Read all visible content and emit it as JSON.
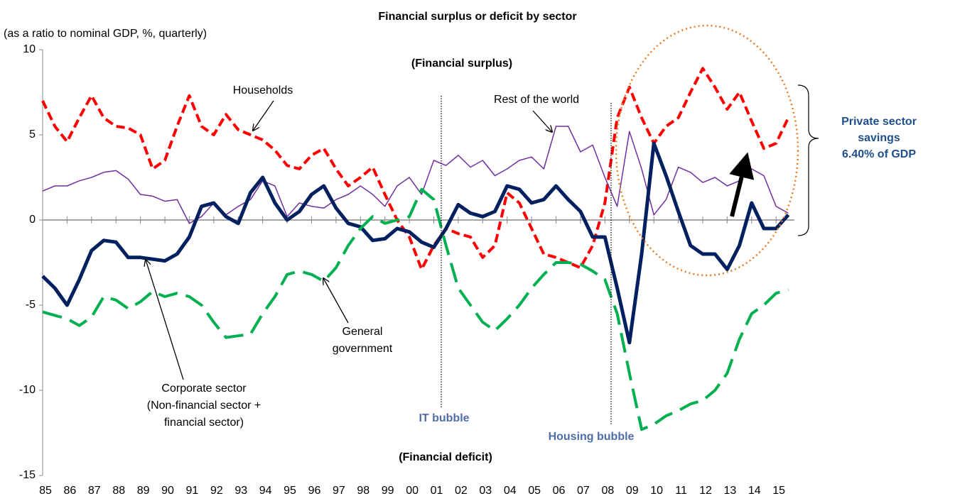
{
  "chart_data": {
    "type": "line",
    "title": "Financial surplus or deficit by sector",
    "subtitle": "(as a ratio to nominal GDP, %, quarterly)",
    "x": [
      1985,
      1985.5,
      1986,
      1986.5,
      1987,
      1987.5,
      1988,
      1988.5,
      1989,
      1989.5,
      1990,
      1990.5,
      1991,
      1991.5,
      1992,
      1992.5,
      1993,
      1993.5,
      1994,
      1994.5,
      1995,
      1995.5,
      1996,
      1996.5,
      1997,
      1997.5,
      1998,
      1998.5,
      1999,
      1999.5,
      2000,
      2000.5,
      2001,
      2001.5,
      2002,
      2002.5,
      2003,
      2003.5,
      2004,
      2004.5,
      2005,
      2005.5,
      2006,
      2006.5,
      2007,
      2007.5,
      2008,
      2008.5,
      2009,
      2009.5,
      2010,
      2010.5,
      2011,
      2011.5,
      2012,
      2012.5,
      2013,
      2013.5,
      2014,
      2014.5,
      2015,
      2015.5
    ],
    "series": [
      {
        "name": "Households",
        "color": "#ff0000",
        "dash": "dashed",
        "width": 4,
        "values": [
          7,
          5.5,
          4.6,
          6,
          7.3,
          6,
          5.5,
          5.4,
          5,
          3,
          3.5,
          5.5,
          7.3,
          5.5,
          5,
          6.2,
          5.3,
          5,
          4.7,
          4.1,
          3.2,
          3,
          3.8,
          4.2,
          3,
          2,
          2.5,
          3.1,
          1.5,
          0,
          -1,
          -2.9,
          -1.5,
          -0.5,
          -0.8,
          -1,
          -2.2,
          -1.5,
          1.6,
          1,
          -0.5,
          -2,
          -2.2,
          -2.5,
          -2.8,
          -1.5,
          1,
          6,
          7.8,
          6,
          4.5,
          5.5,
          6,
          7.5,
          8.9,
          7.8,
          6.5,
          7.5,
          5.8,
          4.2,
          4.5,
          6
        ]
      },
      {
        "name": "Rest of the world",
        "color": "#7030a0",
        "dash": "solid",
        "width": 1.5,
        "values": [
          1.7,
          2,
          2,
          2.3,
          2.5,
          2.8,
          2.9,
          2.4,
          1.5,
          1.4,
          1.1,
          1.2,
          -0.2,
          0.2,
          1,
          0.3,
          0.8,
          1.2,
          2.3,
          2,
          0.2,
          1,
          0.8,
          0.7,
          1.2,
          1.5,
          2,
          1.5,
          0.8,
          2,
          2.5,
          1.5,
          3.5,
          3.2,
          3.8,
          3.1,
          3.5,
          2.6,
          3,
          3.5,
          3.7,
          3,
          5.5,
          5.5,
          4,
          4.4,
          2.5,
          0.8,
          5.2,
          3,
          0.3,
          1.2,
          3.1,
          2.8,
          2.2,
          2.5,
          2,
          2.3,
          3,
          2.6,
          0.8,
          0.4
        ]
      },
      {
        "name": "Corporate sector",
        "color": "#002060",
        "dash": "solid",
        "width": 5,
        "values": [
          -3.3,
          -4,
          -5,
          -3.5,
          -1.8,
          -1.2,
          -1.3,
          -2.2,
          -2.2,
          -2.3,
          -2.4,
          -2,
          -1,
          0.8,
          1,
          0.2,
          -0.2,
          1.6,
          2.5,
          1,
          0,
          0.5,
          1.5,
          2,
          0.7,
          -0.2,
          -0.4,
          -1.2,
          -1.1,
          -0.5,
          -0.7,
          -1.3,
          -1.6,
          -0.5,
          0.9,
          0.4,
          0.2,
          0.5,
          2,
          1.8,
          1,
          1.2,
          2,
          1.2,
          0.5,
          -1,
          -1,
          -4,
          -7.2,
          -2,
          4.5,
          2.6,
          0.5,
          -1.5,
          -2,
          -2,
          -2.9,
          -1.5,
          1,
          -0.5,
          -0.5,
          0.3
        ]
      },
      {
        "name": "General government",
        "color": "#00b050",
        "dash": "longdash",
        "width": 4,
        "values": [
          -5.4,
          -5.6,
          -5.8,
          -6.2,
          -5.7,
          -4.5,
          -4.7,
          -5.2,
          -4.8,
          -4.2,
          -4.5,
          -4.3,
          -4.5,
          -5,
          -6,
          -6.9,
          -6.8,
          -6.7,
          -5.5,
          -4.5,
          -3.2,
          -3,
          -3.2,
          -3.6,
          -2.8,
          -1.5,
          -0.5,
          0.2,
          -0.2,
          0,
          0.2,
          1.8,
          1.2,
          -1.5,
          -4,
          -5,
          -6,
          -6.5,
          -5.8,
          -5,
          -4,
          -3.2,
          -2.5,
          -2.5,
          -2.6,
          -3,
          -3.5,
          -5.5,
          -9,
          -12.3,
          -12,
          -11.5,
          -11.2,
          -10.8,
          -10.6,
          -10,
          -9,
          -7,
          -5.5,
          -5,
          -4.3,
          -4.1
        ]
      }
    ],
    "xlim": [
      1985,
      2015.75
    ],
    "xticks": [
      {
        "value": 1985,
        "label": "85"
      },
      {
        "value": 1986,
        "label": "86"
      },
      {
        "value": 1987,
        "label": "87"
      },
      {
        "value": 1988,
        "label": "88"
      },
      {
        "value": 1989,
        "label": "89"
      },
      {
        "value": 1990,
        "label": "90"
      },
      {
        "value": 1991,
        "label": "91"
      },
      {
        "value": 1992,
        "label": "92"
      },
      {
        "value": 1993,
        "label": "93"
      },
      {
        "value": 1994,
        "label": "94"
      },
      {
        "value": 1995,
        "label": "95"
      },
      {
        "value": 1996,
        "label": "96"
      },
      {
        "value": 1997,
        "label": "97"
      },
      {
        "value": 1998,
        "label": "98"
      },
      {
        "value": 1999,
        "label": "99"
      },
      {
        "value": 2000,
        "label": "00"
      },
      {
        "value": 2001,
        "label": "01"
      },
      {
        "value": 2002,
        "label": "02"
      },
      {
        "value": 2003,
        "label": "03"
      },
      {
        "value": 2004,
        "label": "04"
      },
      {
        "value": 2005,
        "label": "05"
      },
      {
        "value": 2006,
        "label": "06"
      },
      {
        "value": 2007,
        "label": "07"
      },
      {
        "value": 2008,
        "label": "08"
      },
      {
        "value": 2009,
        "label": "09"
      },
      {
        "value": 2010,
        "label": "10"
      },
      {
        "value": 2011,
        "label": "11"
      },
      {
        "value": 2012,
        "label": "12"
      },
      {
        "value": 2013,
        "label": "13"
      },
      {
        "value": 2014,
        "label": "14"
      },
      {
        "value": 2015,
        "label": "15"
      }
    ],
    "ylim": [
      -15,
      10
    ],
    "yticks": [
      -15,
      -10,
      -5,
      0,
      5,
      10
    ],
    "grid": false,
    "annotations": {
      "surplus": "(Financial surplus)",
      "deficit": "(Financial deficit)",
      "households": "Households",
      "rest_of_world": "Rest of the world",
      "government": [
        "General",
        "government"
      ],
      "corporate": [
        "Corporate sector",
        "(Non-financial sector +",
        "financial sector)"
      ],
      "it_bubble": "IT bubble",
      "housing_bubble": "Housing bubble",
      "private_savings": [
        "Private sector",
        "savings",
        "6.40% of GDP"
      ]
    }
  }
}
